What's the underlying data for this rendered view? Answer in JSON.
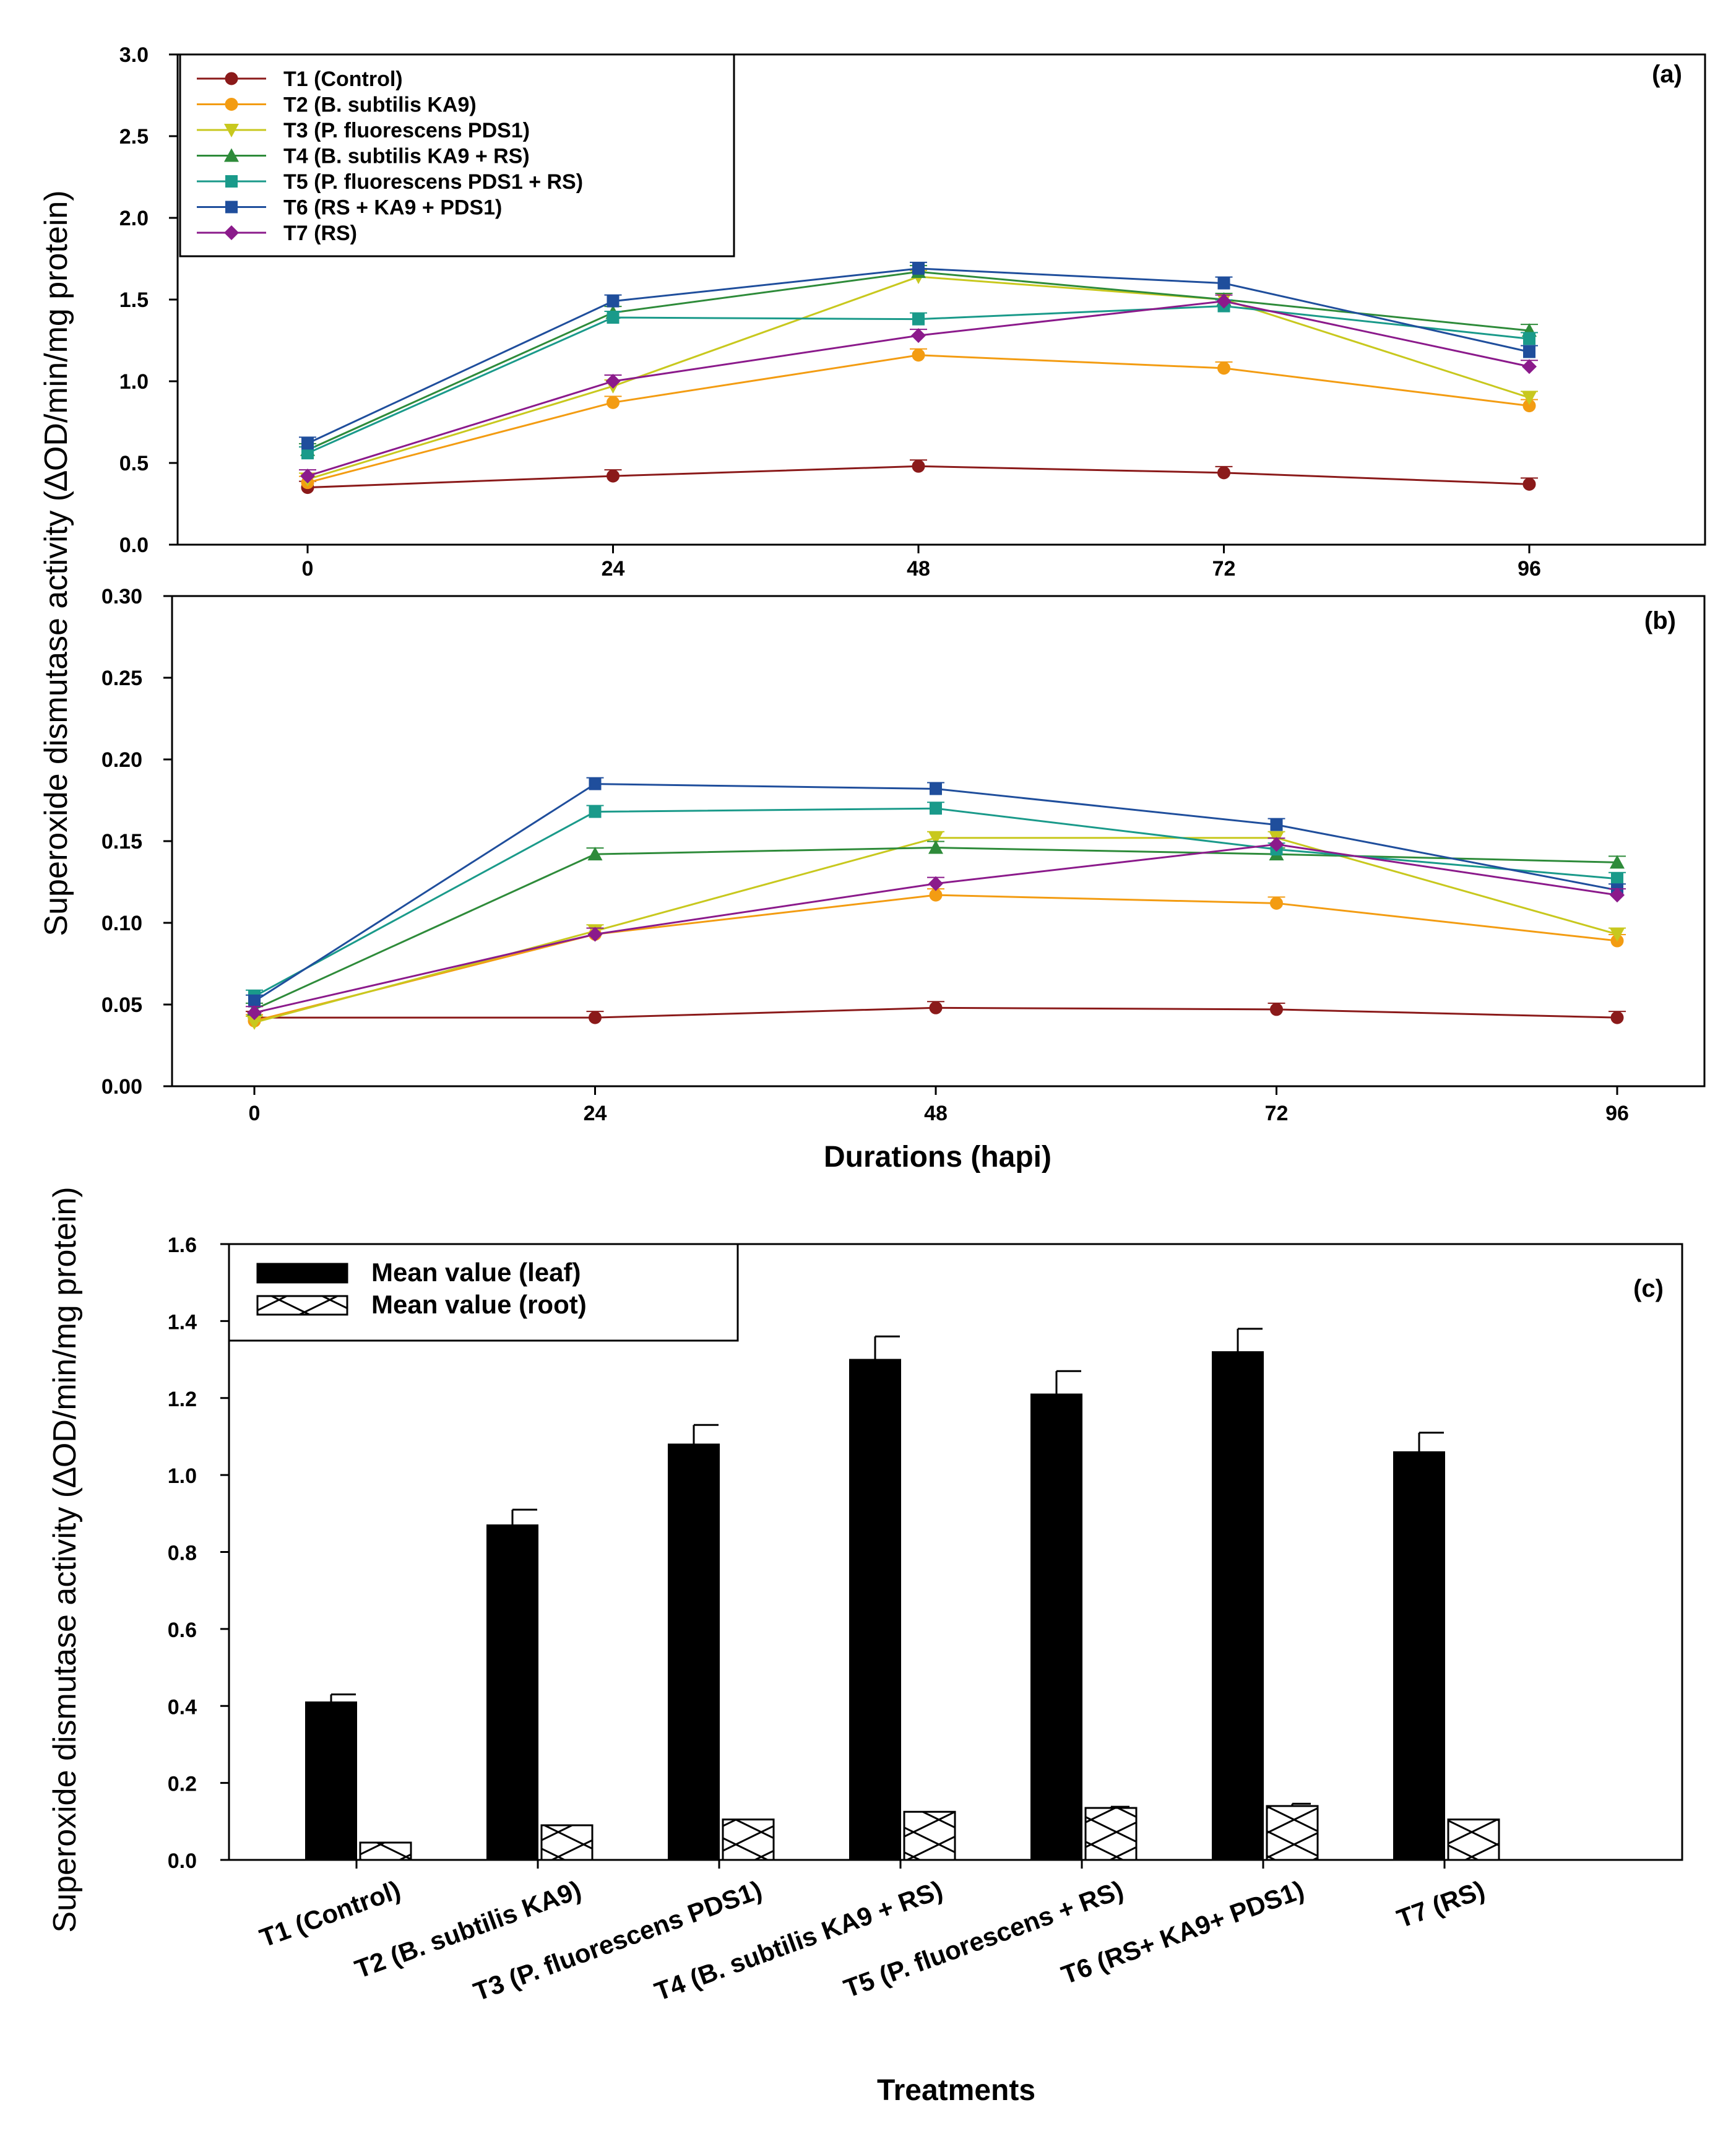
{
  "ylabel_top": "Superoxide dismutase activity (∆OD/min/mg protein)",
  "chart_data": [
    {
      "type": "line",
      "panel_label": "(a)",
      "xlabel": "",
      "x": [
        0,
        24,
        48,
        72,
        96
      ],
      "ylim": [
        0,
        3.0
      ],
      "yticks": [
        "0.0",
        "0.5",
        "1.0",
        "1.5",
        "2.0",
        "2.5",
        "3.0"
      ],
      "xticks": [
        "0",
        "24",
        "48",
        "72",
        "96"
      ],
      "legend_position": "top-left",
      "series": [
        {
          "name": "T1 (Control)",
          "color": "#8b1a1a",
          "marker": "circle",
          "values": [
            0.35,
            0.42,
            0.48,
            0.44,
            0.37
          ]
        },
        {
          "name": "T2 (B. subtilis KA9)",
          "color": "#f39c12",
          "marker": "circle",
          "values": [
            0.38,
            0.87,
            1.16,
            1.08,
            0.85
          ]
        },
        {
          "name": "T3 (P. fluorescens PDS1)",
          "color": "#c8c81e",
          "marker": "triangle-down",
          "values": [
            0.4,
            0.97,
            1.64,
            1.5,
            0.9
          ]
        },
        {
          "name": "T4 (B. subtilis KA9 + RS)",
          "color": "#2e8b3a",
          "marker": "triangle-up",
          "values": [
            0.58,
            1.42,
            1.67,
            1.5,
            1.31
          ]
        },
        {
          "name": "T5 (P. fluorescens PDS1 + RS)",
          "color": "#1a9a8a",
          "marker": "square",
          "values": [
            0.56,
            1.39,
            1.38,
            1.46,
            1.26
          ]
        },
        {
          "name": "T6 (RS + KA9 + PDS1)",
          "color": "#1f4e9c",
          "marker": "square",
          "values": [
            0.62,
            1.49,
            1.69,
            1.6,
            1.18
          ]
        },
        {
          "name": "T7 (RS)",
          "color": "#8b1a8b",
          "marker": "diamond",
          "values": [
            0.42,
            1.0,
            1.28,
            1.49,
            1.09
          ]
        }
      ]
    },
    {
      "type": "line",
      "panel_label": "(b)",
      "xlabel": "Durations (hapi)",
      "x": [
        0,
        24,
        48,
        72,
        96
      ],
      "ylim": [
        0,
        0.3
      ],
      "yticks": [
        "0.00",
        "0.05",
        "0.10",
        "0.15",
        "0.20",
        "0.25",
        "0.30"
      ],
      "xticks": [
        "0",
        "24",
        "48",
        "72",
        "96"
      ],
      "series": [
        {
          "name": "T1 (Control)",
          "color": "#8b1a1a",
          "marker": "circle",
          "values": [
            0.042,
            0.042,
            0.048,
            0.047,
            0.042
          ]
        },
        {
          "name": "T2 (B. subtilis KA9)",
          "color": "#f39c12",
          "marker": "circle",
          "values": [
            0.04,
            0.093,
            0.117,
            0.112,
            0.089
          ]
        },
        {
          "name": "T3 (P. fluorescens PDS1)",
          "color": "#c8c81e",
          "marker": "triangle-down",
          "values": [
            0.039,
            0.095,
            0.152,
            0.152,
            0.093
          ]
        },
        {
          "name": "T4 (B. subtilis KA9 + RS)",
          "color": "#2e8b3a",
          "marker": "triangle-up",
          "values": [
            0.047,
            0.142,
            0.146,
            0.142,
            0.137
          ]
        },
        {
          "name": "T5 (P. fluorescens PDS1 + RS)",
          "color": "#1a9a8a",
          "marker": "square",
          "values": [
            0.055,
            0.168,
            0.17,
            0.145,
            0.127
          ]
        },
        {
          "name": "T6 (RS + KA9 + PDS1)",
          "color": "#1f4e9c",
          "marker": "square",
          "values": [
            0.052,
            0.185,
            0.182,
            0.16,
            0.12
          ]
        },
        {
          "name": "T7 (RS)",
          "color": "#8b1a8b",
          "marker": "diamond",
          "values": [
            0.045,
            0.093,
            0.124,
            0.148,
            0.117
          ]
        }
      ]
    },
    {
      "type": "bar",
      "panel_label": "(c)",
      "xlabel": "Treatments",
      "ylabel": "Superoxide dismutase activity (∆OD/min/mg protein)",
      "ylim": [
        0,
        1.6
      ],
      "yticks": [
        "0.0",
        "0.2",
        "0.4",
        "0.6",
        "0.8",
        "1.0",
        "1.2",
        "1.4",
        "1.6"
      ],
      "categories": [
        "T1 (Control)",
        "T2 (B. subtilis KA9)",
        "T3 (P. fluorescens PDS1)",
        "T4 (B. subtilis KA9 + RS)",
        "T5 (P. fluorescens + RS)",
        "T6 (RS+ KA9+ PDS1)",
        "T7 (RS)"
      ],
      "legend_position": "top-left",
      "series": [
        {
          "name": "Mean value (leaf)",
          "fill": "solid-black",
          "values": [
            0.41,
            0.87,
            1.08,
            1.3,
            1.21,
            1.32,
            1.06
          ],
          "errors": [
            0.02,
            0.04,
            0.05,
            0.06,
            0.06,
            0.06,
            0.05
          ]
        },
        {
          "name": "Mean value (root)",
          "fill": "cross-hatch",
          "values": [
            0.045,
            0.09,
            0.105,
            0.125,
            0.135,
            0.14,
            0.105
          ],
          "errors": [
            0.0,
            0.0,
            0.0,
            0.0,
            0.003,
            0.006,
            0.0
          ]
        }
      ]
    }
  ]
}
